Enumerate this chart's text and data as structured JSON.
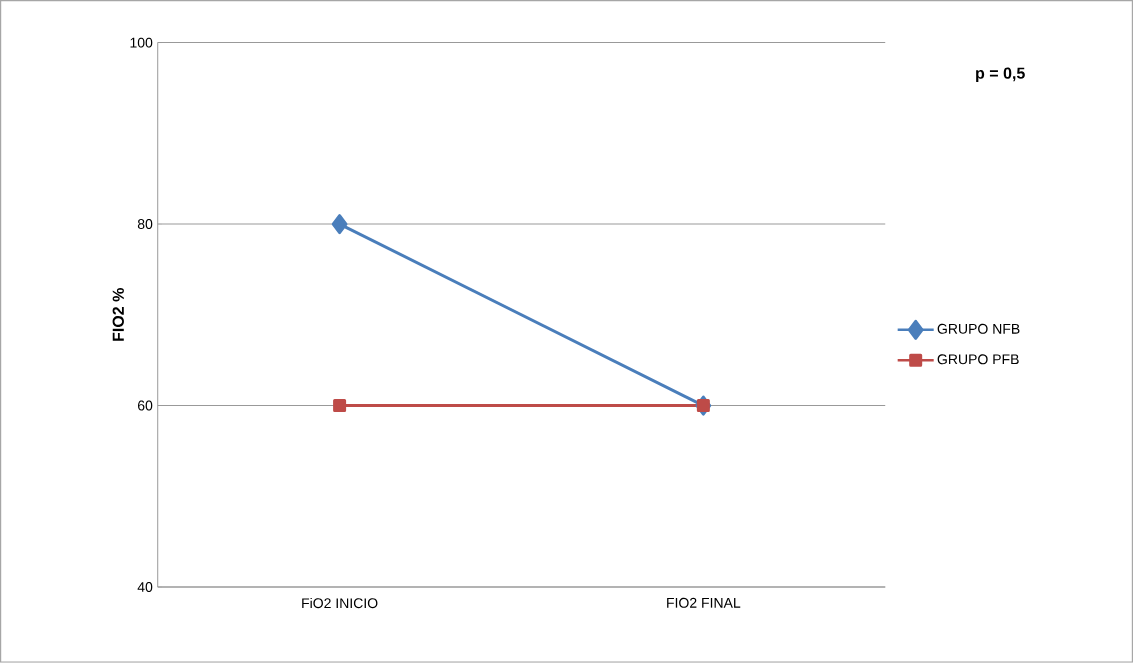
{
  "chart_data": {
    "type": "line",
    "categories": [
      "FiO2 INICIO",
      "FIO2 FINAL"
    ],
    "series": [
      {
        "name": "GRUPO NFB",
        "color": "#4a7ebb",
        "values": [
          80,
          60
        ],
        "marker": "diamond"
      },
      {
        "name": "GRUPO PFB",
        "color": "#be4b48",
        "values": [
          60,
          60
        ],
        "marker": "square"
      }
    ],
    "ylabel": "FIO2 %",
    "ylim": [
      40,
      100
    ],
    "yticks": [
      40,
      60,
      80,
      100
    ],
    "grid": "y",
    "legend": "right",
    "annotations": [
      "p = 0,5"
    ]
  }
}
